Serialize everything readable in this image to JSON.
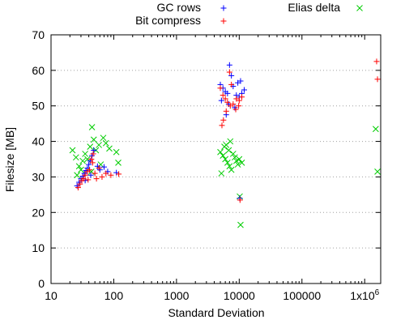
{
  "chart_data": {
    "type": "scatter",
    "title": "",
    "xlabel": "Standard Deviation",
    "ylabel": "Filesize [MB]",
    "x_scale": "log",
    "xlim": [
      10,
      1800000
    ],
    "ylim": [
      0,
      70
    ],
    "x_ticks": [
      {
        "value": 10,
        "label": "10"
      },
      {
        "value": 100,
        "label": "100"
      },
      {
        "value": 1000,
        "label": "1000"
      },
      {
        "value": 10000,
        "label": "10000"
      },
      {
        "value": 100000,
        "label": "100000"
      },
      {
        "value": 1000000,
        "label": "1x10",
        "sup": "6"
      }
    ],
    "y_ticks": [
      0,
      10,
      20,
      30,
      40,
      50,
      60,
      70
    ],
    "grid": "horizontal dotted",
    "legend_position": "top",
    "series": [
      {
        "name": "GC rows",
        "color": "#0000ff",
        "marker": "plus",
        "points": [
          [
            26,
            27.5
          ],
          [
            28,
            28.5
          ],
          [
            30,
            29.5
          ],
          [
            32,
            30.2
          ],
          [
            34,
            31.0
          ],
          [
            36,
            31.8
          ],
          [
            38,
            32.5
          ],
          [
            40,
            33.5
          ],
          [
            42,
            34.5
          ],
          [
            45,
            36.0
          ],
          [
            48,
            37.5
          ],
          [
            43,
            30.5
          ],
          [
            55,
            33.0
          ],
          [
            60,
            32.0
          ],
          [
            70,
            32.8
          ],
          [
            80,
            31.5
          ],
          [
            110,
            31.2
          ],
          [
            35,
            29.0
          ],
          [
            5000,
            56.0
          ],
          [
            5500,
            55.0
          ],
          [
            6000,
            54.0
          ],
          [
            6500,
            53.5
          ],
          [
            7000,
            61.5
          ],
          [
            7500,
            58.5
          ],
          [
            8000,
            55.5
          ],
          [
            9000,
            53.0
          ],
          [
            10000,
            52.5
          ],
          [
            11000,
            53.5
          ],
          [
            12000,
            54.5
          ],
          [
            5200,
            51.5
          ],
          [
            6800,
            50.5
          ],
          [
            8500,
            49.5
          ],
          [
            9500,
            56.5
          ],
          [
            10500,
            57.0
          ],
          [
            6200,
            47.5
          ],
          [
            10200,
            24.0
          ]
        ]
      },
      {
        "name": "Bit compress",
        "color": "#ff0000",
        "marker": "plus",
        "points": [
          [
            27,
            27.0
          ],
          [
            29,
            28.0
          ],
          [
            31,
            29.0
          ],
          [
            33,
            29.5
          ],
          [
            35,
            30.5
          ],
          [
            38,
            31.5
          ],
          [
            41,
            32.0
          ],
          [
            44,
            35.0
          ],
          [
            47,
            36.5
          ],
          [
            50,
            31.0
          ],
          [
            53,
            29.5
          ],
          [
            58,
            32.5
          ],
          [
            65,
            30.0
          ],
          [
            75,
            31.0
          ],
          [
            90,
            30.5
          ],
          [
            120,
            30.8
          ],
          [
            46,
            34.0
          ],
          [
            39,
            29.2
          ],
          [
            5000,
            55.0
          ],
          [
            5500,
            53.0
          ],
          [
            6000,
            52.0
          ],
          [
            6500,
            51.0
          ],
          [
            7000,
            59.5
          ],
          [
            7500,
            56.0
          ],
          [
            8000,
            50.5
          ],
          [
            9000,
            52.0
          ],
          [
            10000,
            51.5
          ],
          [
            11000,
            52.5
          ],
          [
            6200,
            48.5
          ],
          [
            5600,
            46.0
          ],
          [
            7200,
            50.0
          ],
          [
            8800,
            49.0
          ],
          [
            9800,
            50.0
          ],
          [
            5300,
            44.5
          ],
          [
            10300,
            23.5
          ],
          [
            1550000,
            62.5
          ],
          [
            1600000,
            57.5
          ]
        ]
      },
      {
        "name": "Elias delta",
        "color": "#00cc00",
        "marker": "cross",
        "points": [
          [
            22,
            37.5
          ],
          [
            25,
            35.5
          ],
          [
            28,
            33.0
          ],
          [
            30,
            32.0
          ],
          [
            32,
            34.5
          ],
          [
            35,
            36.5
          ],
          [
            38,
            35.0
          ],
          [
            42,
            38.5
          ],
          [
            45,
            44.0
          ],
          [
            48,
            40.5
          ],
          [
            52,
            37.5
          ],
          [
            58,
            39.0
          ],
          [
            62,
            33.5
          ],
          [
            68,
            41.0
          ],
          [
            75,
            39.5
          ],
          [
            85,
            38.0
          ],
          [
            110,
            37.0
          ],
          [
            118,
            34.0
          ],
          [
            26,
            30.5
          ],
          [
            44,
            31.5
          ],
          [
            5000,
            37.0
          ],
          [
            5500,
            36.0
          ],
          [
            6000,
            35.0
          ],
          [
            6500,
            34.0
          ],
          [
            7000,
            33.0
          ],
          [
            7500,
            32.0
          ],
          [
            8000,
            36.5
          ],
          [
            8500,
            35.5
          ],
          [
            9000,
            34.5
          ],
          [
            9500,
            33.5
          ],
          [
            10000,
            35.0
          ],
          [
            11000,
            34.0
          ],
          [
            6200,
            39.0
          ],
          [
            7200,
            40.0
          ],
          [
            5200,
            31.0
          ],
          [
            5800,
            38.5
          ],
          [
            6800,
            37.5
          ],
          [
            10200,
            24.5
          ],
          [
            10500,
            16.5
          ],
          [
            1500000,
            43.5
          ],
          [
            1600000,
            31.5
          ]
        ]
      }
    ]
  }
}
